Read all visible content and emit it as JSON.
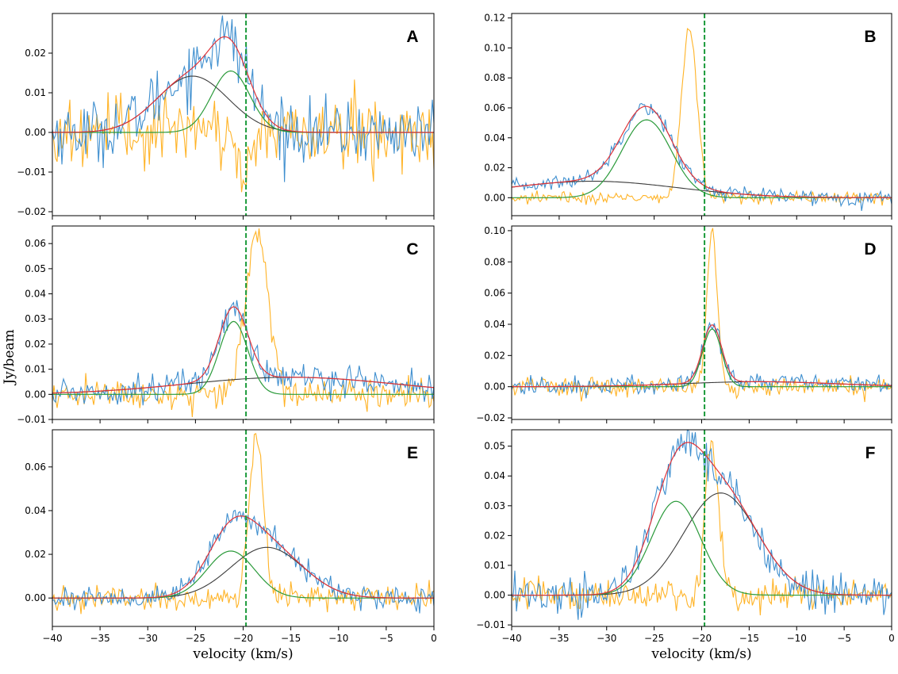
{
  "figure": {
    "ylabel": "Jy/beam",
    "xlabel": "velocity (km/s)",
    "vline_velocity": -19.7,
    "colors": {
      "data": "#3f8fcf",
      "reference": "#ffb326",
      "total_fit": "#e0343a",
      "component_1": "#2a9a3a",
      "component_2": "#3c3c3c",
      "vline": "#1a9a3a"
    }
  },
  "chart_data": [
    {
      "panel": "A",
      "type": "line",
      "xlim": [
        -40,
        0
      ],
      "ylim": [
        -0.021,
        0.03
      ],
      "xticks": [
        -40,
        -35,
        -30,
        -25,
        -20,
        -15,
        -10,
        -5,
        0
      ],
      "yticks": [
        -0.02,
        -0.01,
        0.0,
        0.01,
        0.02
      ],
      "ytick_labels": [
        "−0.02",
        "−0.01",
        "0.00",
        "0.01",
        "0.02"
      ],
      "xtick_labels": [],
      "xlabel": "",
      "components": [
        {
          "name": "component_1",
          "amp": 0.0155,
          "center": -21.3,
          "sigma": 2.0
        },
        {
          "name": "component_2",
          "amp": 0.0142,
          "center": -25.3,
          "sigma": 3.7
        }
      ],
      "noise": 0.0038,
      "reference": {
        "amp": -0.012,
        "center": -19.8,
        "sigma": 0.6,
        "noise": 0.0045
      }
    },
    {
      "panel": "B",
      "type": "line",
      "xlim": [
        -40,
        0
      ],
      "ylim": [
        -0.012,
        0.123
      ],
      "xticks": [
        -40,
        -35,
        -30,
        -25,
        -20,
        -15,
        -10,
        -5,
        0
      ],
      "yticks": [
        0.0,
        0.02,
        0.04,
        0.06,
        0.08,
        0.1,
        0.12
      ],
      "ytick_labels": [
        "0.00",
        "0.02",
        "0.04",
        "0.06",
        "0.08",
        "0.10",
        "0.12"
      ],
      "xtick_labels": [],
      "xlabel": "",
      "components": [
        {
          "name": "component_1",
          "amp": 0.052,
          "center": -25.8,
          "sigma": 2.6
        },
        {
          "name": "component_2",
          "amp": 0.011,
          "center": -31.5,
          "sigma": 9.0
        }
      ],
      "noise": 0.0025,
      "reference": {
        "amp": 0.115,
        "center": -21.3,
        "sigma": 0.8,
        "noise": 0.002
      }
    },
    {
      "panel": "C",
      "type": "line",
      "xlim": [
        -40,
        0
      ],
      "ylim": [
        -0.01,
        0.067
      ],
      "xticks": [
        -40,
        -35,
        -30,
        -25,
        -20,
        -15,
        -10,
        -5,
        0
      ],
      "yticks": [
        -0.01,
        0.0,
        0.01,
        0.02,
        0.03,
        0.04,
        0.05,
        0.06
      ],
      "ytick_labels": [
        "−0.01",
        "0.00",
        "0.01",
        "0.02",
        "0.03",
        "0.04",
        "0.05",
        "0.06"
      ],
      "xtick_labels": [],
      "xlabel": "",
      "components": [
        {
          "name": "component_1",
          "amp": 0.029,
          "center": -21.0,
          "sigma": 1.5
        },
        {
          "name": "component_2",
          "amp": 0.0068,
          "center": -15.0,
          "sigma": 11.0
        }
      ],
      "noise": 0.0028,
      "reference": {
        "amp": 0.063,
        "center": -18.5,
        "sigma": 1.2,
        "noise": 0.003
      }
    },
    {
      "panel": "D",
      "type": "line",
      "xlim": [
        -40,
        0
      ],
      "ylim": [
        -0.021,
        0.103
      ],
      "xticks": [
        -40,
        -35,
        -30,
        -25,
        -20,
        -15,
        -10,
        -5,
        0
      ],
      "yticks": [
        -0.02,
        0.0,
        0.02,
        0.04,
        0.06,
        0.08,
        0.1
      ],
      "ytick_labels": [
        "−0.02",
        "0.00",
        "0.02",
        "0.04",
        "0.06",
        "0.08",
        "0.10"
      ],
      "xtick_labels": [],
      "xlabel": "",
      "components": [
        {
          "name": "component_1",
          "amp": 0.037,
          "center": -18.9,
          "sigma": 1.0
        },
        {
          "name": "component_2",
          "amp": 0.0032,
          "center": -14.0,
          "sigma": 8.0
        }
      ],
      "noise": 0.003,
      "reference": {
        "amp": 0.099,
        "center": -18.9,
        "sigma": 0.55,
        "noise": 0.003
      }
    },
    {
      "panel": "E",
      "type": "line",
      "xlim": [
        -40,
        0
      ],
      "ylim": [
        -0.013,
        0.077
      ],
      "xticks": [
        -40,
        -35,
        -30,
        -25,
        -20,
        -15,
        -10,
        -5,
        0
      ],
      "yticks": [
        0.0,
        0.02,
        0.04,
        0.06
      ],
      "ytick_labels": [
        "0.00",
        "0.02",
        "0.04",
        "0.06"
      ],
      "xtick_labels": [
        "−40",
        "−35",
        "−30",
        "−25",
        "−20",
        "−15",
        "−10",
        "−5",
        "0"
      ],
      "xlabel": "velocity (km/s)",
      "components": [
        {
          "name": "component_1",
          "amp": 0.0215,
          "center": -21.3,
          "sigma": 2.5
        },
        {
          "name": "component_2",
          "amp": 0.0232,
          "center": -17.5,
          "sigma": 3.8
        }
      ],
      "noise": 0.0025,
      "reference": {
        "amp": 0.076,
        "center": -18.6,
        "sigma": 0.75,
        "noise": 0.003
      }
    },
    {
      "panel": "F",
      "type": "line",
      "xlim": [
        -40,
        0
      ],
      "ylim": [
        -0.0105,
        0.0555
      ],
      "xticks": [
        -40,
        -35,
        -30,
        -25,
        -20,
        -15,
        -10,
        -5,
        0
      ],
      "yticks": [
        -0.01,
        0.0,
        0.01,
        0.02,
        0.03,
        0.04,
        0.05
      ],
      "ytick_labels": [
        "−0.01",
        "0.00",
        "0.01",
        "0.02",
        "0.03",
        "0.04",
        "0.05"
      ],
      "xtick_labels": [
        "−40",
        "−35",
        "−30",
        "−25",
        "−20",
        "−15",
        "−10",
        "−5",
        "0"
      ],
      "xlabel": "velocity (km/s)",
      "components": [
        {
          "name": "component_1",
          "amp": 0.0315,
          "center": -22.7,
          "sigma": 2.6
        },
        {
          "name": "component_2",
          "amp": 0.0343,
          "center": -18.0,
          "sigma": 3.9
        }
      ],
      "noise": 0.0035,
      "reference": {
        "amp": 0.052,
        "center": -18.9,
        "sigma": 0.7,
        "noise": 0.0025
      }
    }
  ]
}
